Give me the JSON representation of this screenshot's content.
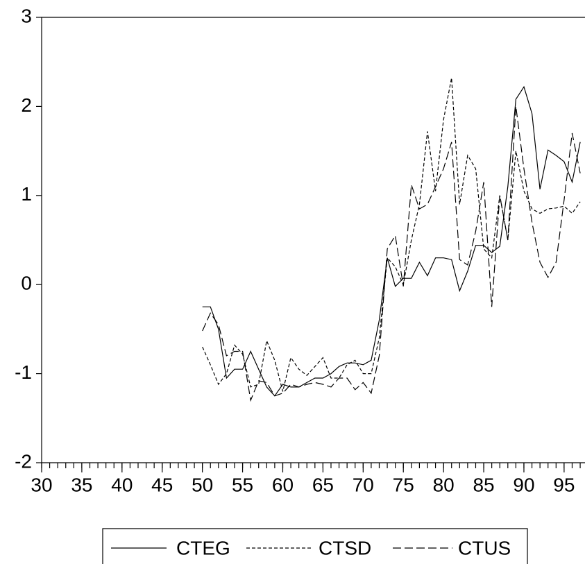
{
  "chart_data": {
    "type": "line",
    "x": [
      50,
      51,
      52,
      53,
      54,
      55,
      56,
      57,
      58,
      59,
      60,
      61,
      62,
      63,
      64,
      65,
      66,
      67,
      68,
      69,
      70,
      71,
      72,
      73,
      74,
      75,
      76,
      77,
      78,
      79,
      80,
      81,
      82,
      83,
      84,
      85,
      86,
      87,
      88,
      89,
      90,
      91,
      92,
      93,
      94,
      95,
      96,
      97
    ],
    "series": [
      {
        "name": "CTEG",
        "color": "#000000",
        "dash": "solid",
        "values": [
          -0.25,
          -0.25,
          -0.5,
          -1.05,
          -0.95,
          -0.95,
          -0.75,
          -0.95,
          -1.15,
          -1.25,
          -1.12,
          -1.15,
          -1.15,
          -1.1,
          -1.05,
          -1.05,
          -1.0,
          -0.92,
          -0.88,
          -0.88,
          -0.9,
          -0.85,
          -0.4,
          0.3,
          -0.02,
          0.07,
          0.07,
          0.25,
          0.1,
          0.3,
          0.3,
          0.28,
          -0.07,
          0.15,
          0.44,
          0.44,
          0.36,
          0.43,
          1.1,
          2.08,
          2.22,
          1.92,
          1.07,
          1.51,
          1.45,
          1.38,
          1.15,
          1.6
        ]
      },
      {
        "name": "CTSD",
        "color": "#000000",
        "dash": "short",
        "values": [
          -0.7,
          -0.9,
          -1.12,
          -1.0,
          -0.68,
          -0.78,
          -1.15,
          -1.12,
          -0.63,
          -0.85,
          -1.2,
          -0.82,
          -0.95,
          -1.02,
          -0.92,
          -0.82,
          -1.05,
          -1.05,
          -0.9,
          -0.85,
          -1.0,
          -1.0,
          -0.6,
          0.3,
          0.2,
          0.0,
          0.5,
          0.9,
          1.72,
          1.05,
          1.85,
          2.32,
          0.9,
          1.45,
          1.3,
          0.4,
          0.3,
          1.0,
          0.5,
          1.5,
          1.05,
          0.85,
          0.8,
          0.85,
          0.86,
          0.88,
          0.8,
          0.93
        ]
      },
      {
        "name": "CTUS",
        "color": "#000000",
        "dash": "long",
        "values": [
          -0.52,
          -0.32,
          -0.45,
          -0.8,
          -0.75,
          -0.75,
          -1.3,
          -1.08,
          -1.1,
          -1.25,
          -1.22,
          -1.12,
          -1.15,
          -1.12,
          -1.1,
          -1.12,
          -1.15,
          -1.05,
          -1.05,
          -1.18,
          -1.1,
          -1.22,
          -0.8,
          0.4,
          0.55,
          -0.02,
          1.12,
          0.85,
          0.9,
          1.1,
          1.3,
          1.6,
          0.28,
          0.22,
          0.6,
          1.15,
          -0.25,
          1.0,
          0.5,
          2.0,
          1.3,
          0.7,
          0.25,
          0.08,
          0.25,
          0.95,
          1.7,
          1.25
        ]
      }
    ],
    "xlim": [
      30,
      97.6
    ],
    "xticks": [
      30,
      35,
      40,
      45,
      50,
      55,
      60,
      65,
      70,
      75,
      80,
      85,
      90,
      95
    ],
    "ylim": [
      -2,
      3
    ],
    "yticks": [
      -2,
      -1,
      0,
      1,
      2,
      3
    ],
    "legend": "bottom"
  }
}
